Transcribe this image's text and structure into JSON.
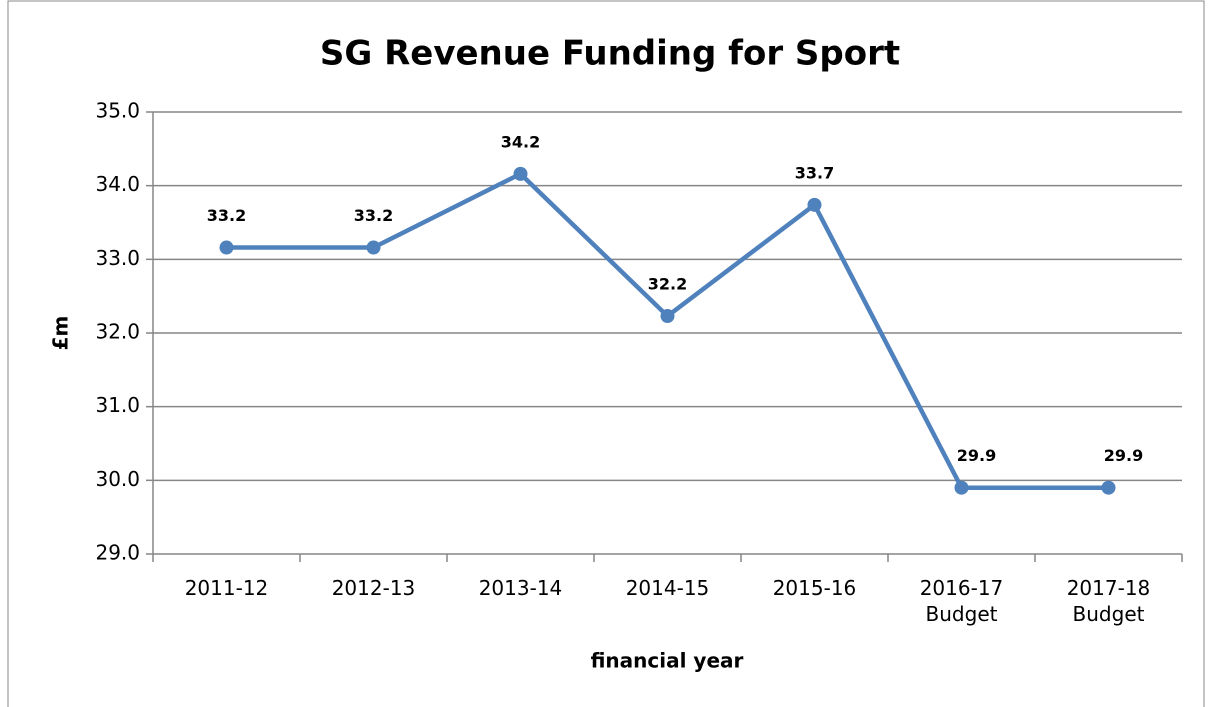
{
  "chart_data": {
    "type": "line",
    "title": "SG Revenue Funding for Sport",
    "xlabel": "financial year",
    "ylabel": "£m",
    "categories": [
      "2011-12",
      "2012-13",
      "2013-14",
      "2014-15",
      "2015-16",
      "2016-17\nBudget",
      "2017-18\nBudget"
    ],
    "series": [
      {
        "name": "SG Revenue Funding for Sport",
        "color": "#4f81bd",
        "values": [
          33.16,
          33.16,
          34.16,
          32.23,
          33.74,
          29.9,
          29.9
        ],
        "value_labels": [
          "33.2",
          "33.2",
          "34.2",
          "32.2",
          "33.7",
          "29.9",
          "29.9"
        ]
      }
    ],
    "ylim": [
      29,
      35
    ],
    "yticks": [
      {
        "value": 29,
        "label": "29.0"
      },
      {
        "value": 30,
        "label": "30.0"
      },
      {
        "value": 31,
        "label": "31.0"
      },
      {
        "value": 32,
        "label": "32.0"
      },
      {
        "value": 33,
        "label": "33.0"
      },
      {
        "value": 34,
        "label": "34.0"
      },
      {
        "value": 35,
        "label": "35.0"
      }
    ],
    "grid": true
  }
}
